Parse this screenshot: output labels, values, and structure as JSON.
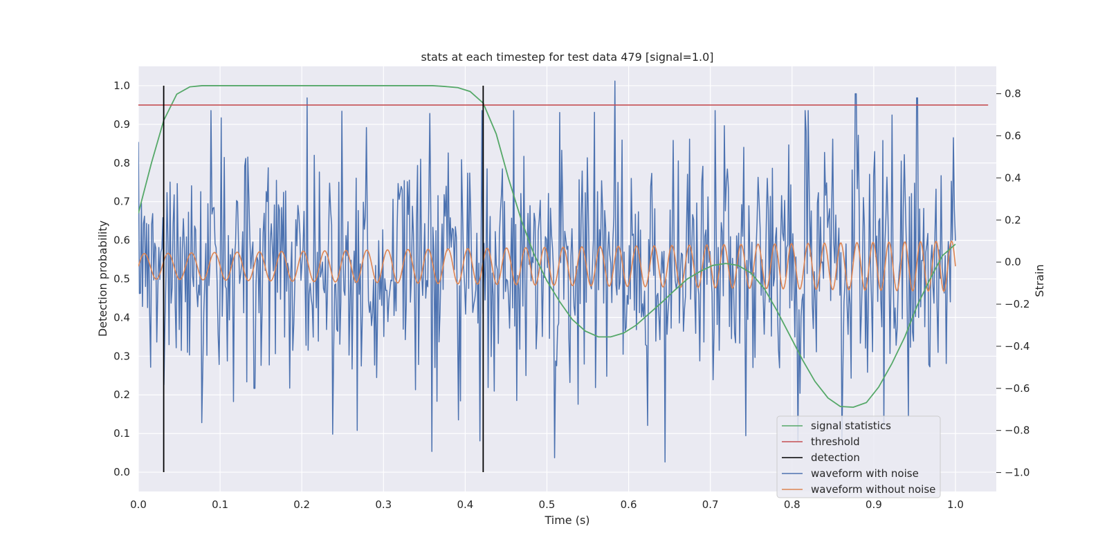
{
  "chart_data": {
    "type": "line",
    "title": "stats at each timestep for test data 479 [signal=1.0]",
    "xlabel": "Time (s)",
    "ylabel": "Detection probability",
    "y2label": "Strain",
    "xlim": [
      0.0,
      1.05
    ],
    "ylim": [
      -0.05,
      1.05
    ],
    "y2lim": [
      -1.09,
      0.93
    ],
    "xticks": [
      "0.0",
      "0.1",
      "0.2",
      "0.3",
      "0.4",
      "0.5",
      "0.6",
      "0.7",
      "0.8",
      "0.9",
      "1.0"
    ],
    "yticks": [
      "0.0",
      "0.1",
      "0.2",
      "0.3",
      "0.4",
      "0.5",
      "0.6",
      "0.7",
      "0.8",
      "0.9",
      "1.0"
    ],
    "y2ticks": [
      "−1.0",
      "−0.8",
      "−0.6",
      "−0.4",
      "−0.2",
      "0.0",
      "0.2",
      "0.4",
      "0.6",
      "0.8"
    ],
    "grid": true,
    "legend_position": "lower right",
    "threshold": 0.95,
    "detections": [
      0.031,
      0.422
    ],
    "colors": {
      "signal_statistics": "#55a868",
      "threshold": "#c44e52",
      "detection": "#000000",
      "waveform_with_noise": "#4c72b0",
      "waveform_without_noise": "#dd8452",
      "axes_background": "#eaeaf2",
      "grid": "#ffffff"
    },
    "legend": [
      "signal statistics",
      "threshold",
      "detection",
      "waveform with noise",
      "waveform without noise"
    ],
    "series": [
      {
        "name": "signal statistics",
        "axis": "left",
        "x": [
          0.0,
          0.016,
          0.031,
          0.047,
          0.063,
          0.078,
          0.094,
          0.125,
          0.2,
          0.3,
          0.36,
          0.375,
          0.391,
          0.406,
          0.422,
          0.438,
          0.453,
          0.469,
          0.484,
          0.5,
          0.516,
          0.531,
          0.547,
          0.563,
          0.578,
          0.594,
          0.609,
          0.625,
          0.641,
          0.656,
          0.672,
          0.688,
          0.703,
          0.719,
          0.734,
          0.75,
          0.766,
          0.781,
          0.797,
          0.813,
          0.828,
          0.844,
          0.859,
          0.875,
          0.891,
          0.906,
          0.922,
          0.938,
          0.953,
          0.969,
          0.984,
          1.0
        ],
        "y": [
          0.67,
          0.8,
          0.91,
          0.978,
          0.997,
          1.0,
          1.0,
          1.0,
          1.0,
          1.0,
          1.0,
          0.998,
          0.995,
          0.985,
          0.955,
          0.875,
          0.76,
          0.65,
          0.565,
          0.495,
          0.44,
          0.395,
          0.365,
          0.35,
          0.35,
          0.36,
          0.38,
          0.41,
          0.44,
          0.47,
          0.5,
          0.52,
          0.535,
          0.54,
          0.535,
          0.515,
          0.475,
          0.42,
          0.355,
          0.29,
          0.235,
          0.192,
          0.17,
          0.168,
          0.18,
          0.22,
          0.28,
          0.35,
          0.43,
          0.5,
          0.56,
          0.59
        ]
      },
      {
        "name": "waveform without noise",
        "axis": "right",
        "t0": 0.0,
        "t1": 1.0,
        "amplitude_start": 0.06,
        "amplitude_end": 0.12,
        "frequency_start_hz": 34,
        "frequency_end_hz": 53
      },
      {
        "name": "waveform with noise",
        "axis": "right",
        "t0": 0.0,
        "t1": 1.0,
        "n_points": 800,
        "noise_sigma": 0.3,
        "peaks": [
          [
            0.207,
            0.78
          ],
          [
            0.421,
            0.72
          ],
          [
            0.583,
            0.86
          ],
          [
            0.878,
            0.8
          ],
          [
            0.953,
            0.78
          ],
          [
            0.359,
            -0.9
          ],
          [
            0.509,
            -0.93
          ],
          [
            0.645,
            -0.95
          ],
          [
            0.392,
            -0.75
          ],
          [
            0.268,
            -0.8
          ],
          [
            0.142,
            -0.6
          ]
        ]
      }
    ]
  }
}
